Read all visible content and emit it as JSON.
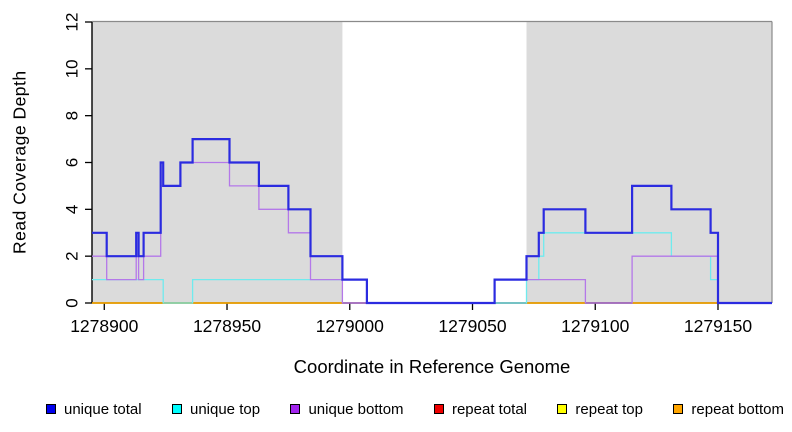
{
  "chart_data": {
    "type": "line",
    "step_style": "post",
    "title": "",
    "xlabel": "Coordinate in Reference Genome",
    "ylabel": "Read Coverage Depth",
    "xlim": [
      1278895,
      1279172
    ],
    "ylim": [
      0,
      12
    ],
    "x_ticks": [
      1278900,
      1278950,
      1279000,
      1279050,
      1279100,
      1279150
    ],
    "y_ticks": [
      0,
      2,
      4,
      6,
      8,
      10,
      12
    ],
    "grid": false,
    "legend_position": "bottom",
    "colors": {
      "background": "#ffffff",
      "axis": "#000000",
      "box": "#8a8a8a",
      "shading": "#dbdbdb",
      "text": "#000000"
    },
    "shaded_regions": [
      {
        "from": 1278895,
        "to": 1278997
      },
      {
        "from": 1279072,
        "to": 1279172
      }
    ],
    "series": [
      {
        "name": "unique-total",
        "label": "unique total",
        "legend_color": "#0000ee",
        "line_color": "#2b2be0",
        "line_width": 2.2,
        "z": 6,
        "segments": [
          [
            [
              1278895,
              3
            ],
            [
              1278901,
              2
            ],
            [
              1278913,
              3
            ],
            [
              1278914,
              2
            ],
            [
              1278916,
              3
            ],
            [
              1278923,
              6
            ],
            [
              1278924,
              5
            ],
            [
              1278931,
              6
            ],
            [
              1278936,
              7
            ],
            [
              1278951,
              6
            ],
            [
              1278963,
              5
            ],
            [
              1278975,
              4
            ],
            [
              1278984,
              2
            ],
            [
              1278997,
              1
            ],
            [
              1279007,
              0
            ],
            [
              1279059,
              1
            ],
            [
              1279072,
              2
            ],
            [
              1279077,
              3
            ],
            [
              1279079,
              4
            ],
            [
              1279096,
              3
            ],
            [
              1279115,
              5
            ],
            [
              1279131,
              4
            ],
            [
              1279147,
              3
            ],
            [
              1279150,
              0
            ],
            [
              1279172,
              0
            ]
          ]
        ]
      },
      {
        "name": "unique-top",
        "label": "unique top",
        "legend_color": "#00ffff",
        "line_color": "#6febee",
        "line_width": 1.3,
        "z": 4,
        "segments": [
          [
            [
              1278895,
              1
            ],
            [
              1278924,
              0
            ],
            [
              1278936,
              1
            ],
            [
              1279007,
              0
            ],
            [
              1279072,
              1
            ],
            [
              1279077,
              2
            ],
            [
              1279079,
              3
            ],
            [
              1279131,
              2
            ],
            [
              1279147,
              1
            ],
            [
              1279150,
              0
            ],
            [
              1279172,
              0
            ]
          ]
        ]
      },
      {
        "name": "unique-bottom",
        "label": "unique bottom",
        "legend_color": "#a224ee",
        "line_color": "#b478e9",
        "line_width": 1.3,
        "z": 5,
        "segments": [
          [
            [
              1278895,
              2
            ],
            [
              1278901,
              1
            ],
            [
              1278913,
              2
            ],
            [
              1278914,
              1
            ],
            [
              1278916,
              2
            ],
            [
              1278923,
              5
            ],
            [
              1278931,
              6
            ],
            [
              1278951,
              5
            ],
            [
              1278963,
              4
            ],
            [
              1278975,
              3
            ],
            [
              1278984,
              1
            ],
            [
              1278997,
              0
            ],
            [
              1279059,
              1
            ],
            [
              1279096,
              0
            ],
            [
              1279115,
              2
            ],
            [
              1279150,
              0
            ],
            [
              1279172,
              0
            ]
          ]
        ]
      },
      {
        "name": "repeat-total",
        "label": "repeat total",
        "legend_color": "#ee0000",
        "line_color": "#d95070",
        "line_width": 1.3,
        "z": 3,
        "segments": [
          [
            [
              1278997,
              0
            ],
            [
              1279007,
              0
            ]
          ],
          [
            [
              1279096,
              0
            ],
            [
              1279115,
              0
            ]
          ]
        ]
      },
      {
        "name": "repeat-top",
        "label": "repeat top",
        "legend_color": "#ffff00",
        "line_color": "#ffff00",
        "line_width": 1.3,
        "z": 1,
        "segments": [
          [
            [
              1278895,
              0
            ],
            [
              1278997,
              0
            ]
          ],
          [
            [
              1279072,
              0
            ],
            [
              1279096,
              0
            ]
          ],
          [
            [
              1279115,
              0
            ],
            [
              1279150,
              0
            ]
          ]
        ]
      },
      {
        "name": "repeat-bottom",
        "label": "repeat bottom",
        "legend_color": "#ffa500",
        "line_color": "#ffa500",
        "line_width": 1.6,
        "z": 2,
        "segments": [
          [
            [
              1278895,
              0
            ],
            [
              1278997,
              0
            ]
          ],
          [
            [
              1279072,
              0
            ],
            [
              1279096,
              0
            ]
          ],
          [
            [
              1279115,
              0
            ],
            [
              1279150,
              0
            ]
          ]
        ]
      }
    ]
  }
}
